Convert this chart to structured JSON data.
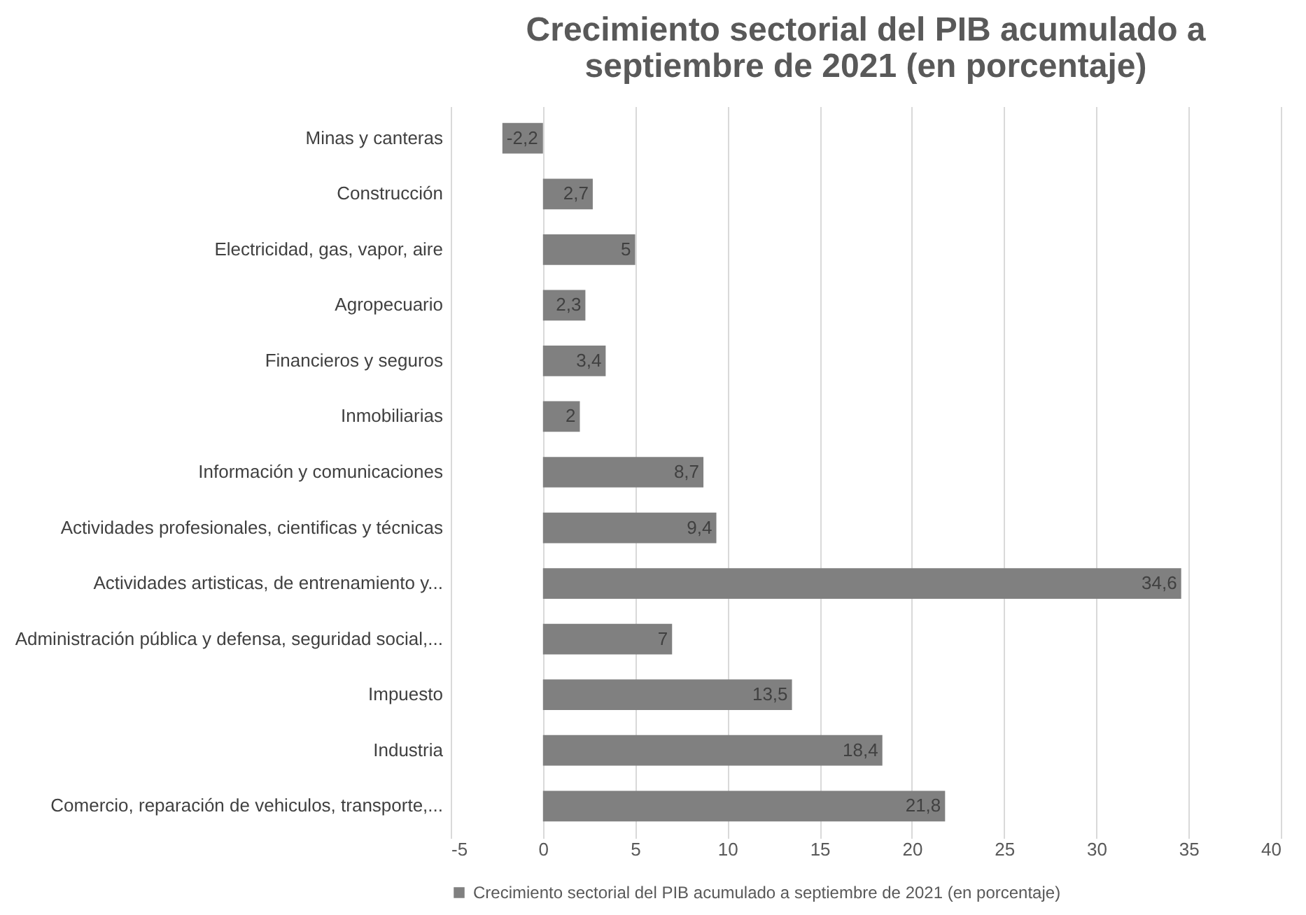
{
  "chart_data": {
    "type": "bar",
    "orientation": "horizontal",
    "title": "Crecimiento sectorial del PIB acumulado a septiembre de 2021 (en porcentaje)",
    "categories": [
      "Minas y canteras",
      "Construcción",
      "Electricidad, gas, vapor, aire",
      "Agropecuario",
      "Financieros y seguros",
      "Inmobiliarias",
      "Información y comunicaciones",
      "Actividades profesionales, cientificas y técnicas",
      "Actividades artisticas, de entrenamiento y...",
      "Administración pública y defensa, seguridad social,...",
      "Impuesto",
      "Industria",
      "Comercio, reparación de vehiculos, transporte,..."
    ],
    "series": [
      {
        "name": "Crecimiento sectorial del PIB acumulado a septiembre de 2021 (en porcentaje)",
        "color": "#808080",
        "values": [
          -2.2,
          2.7,
          5,
          2.3,
          3.4,
          2,
          8.7,
          9.4,
          34.6,
          7,
          13.5,
          18.4,
          21.8
        ],
        "value_labels": [
          "-2,2",
          "2,7",
          "5",
          "2,3",
          "3,4",
          "2",
          "8,7",
          "9,4",
          "34,6",
          "7",
          "13,5",
          "18,4",
          "21,8"
        ]
      }
    ],
    "xlim": [
      -5,
      40
    ],
    "xticks": [
      -5,
      0,
      5,
      10,
      15,
      20,
      25,
      30,
      35,
      40
    ],
    "grid": "x",
    "legend": "bottom"
  }
}
